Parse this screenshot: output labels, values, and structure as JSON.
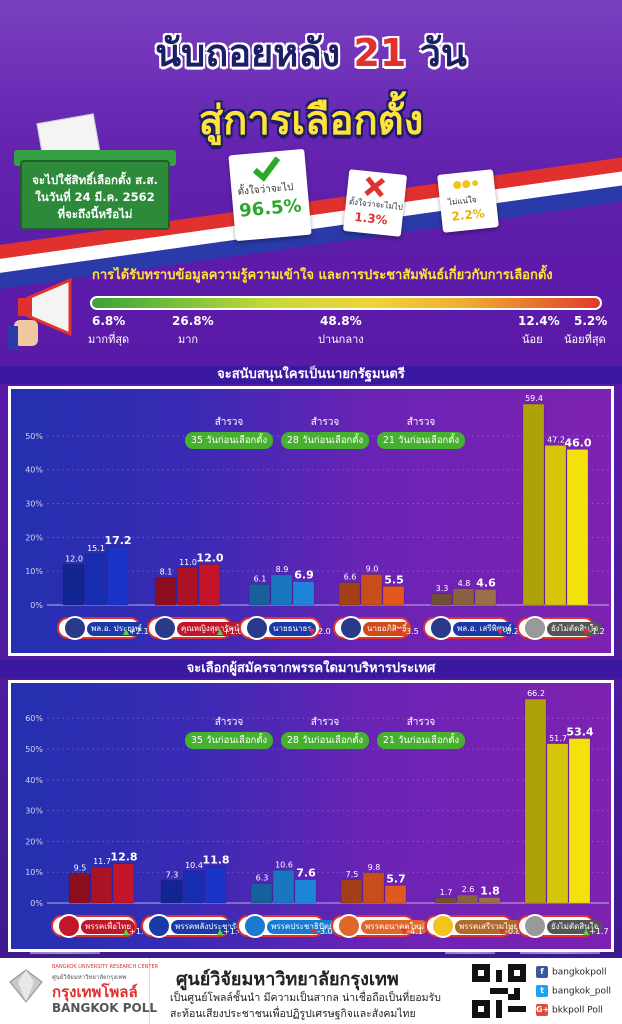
{
  "header": {
    "title_part1": "นับถอยหลัง",
    "title_number": "21",
    "title_part2": "วัน",
    "subtitle": "สู่การเลือกตั้ง",
    "ballot_question_line1": "จะไปใช้สิทธิ์เลือกตั้ง ส.ส.",
    "ballot_question_line2": "ในวันที่ 24 มี.ค. 2562",
    "ballot_question_line3": "ที่จะถึงนี้หรือไม่",
    "options": [
      {
        "label": "ตั้งใจว่าจะไป",
        "pct": "96.5%",
        "icon": "check-icon",
        "color": "#2aa82a"
      },
      {
        "label": "ตั้งใจว่าจะไม่ไป",
        "pct": "1.3%",
        "icon": "cross-icon",
        "color": "#e0312e"
      },
      {
        "label": "ไม่แน่ใจ",
        "pct": "2.2%",
        "icon": "unsure-icon",
        "color": "#e8b400"
      }
    ]
  },
  "knowledge": {
    "title": "การได้รับทราบข้อมูลความรู้ความเข้าใจ และการประชาสัมพันธ์เกี่ยวกับการเลือกตั้ง",
    "levels": [
      {
        "pct": "6.8%",
        "label": "มากที่สุด",
        "color": "#5ec04a"
      },
      {
        "pct": "26.8%",
        "label": "มาก",
        "color": "#9fd23a"
      },
      {
        "pct": "48.8%",
        "label": "ปานกลาง",
        "color": "#f1d33a"
      },
      {
        "pct": "12.4%",
        "label": "น้อย",
        "color": "#f0a032"
      },
      {
        "pct": "5.2%",
        "label": "น้อยที่สุด",
        "color": "#ee5a2a"
      }
    ]
  },
  "panel1": {
    "title": "จะสนับสนุนใครเป็นนายกรัฐมนตรี",
    "survey_word": "สำรวจ",
    "surveys": [
      "35 วันก่อนเลือกตั้ง",
      "28 วันก่อนเลือกตั้ง",
      "21 วันก่อนเลือกตั้ง"
    ],
    "candidates": [
      {
        "name": "พล.อ. ประยุทธ์",
        "change": "+2.1",
        "dir": "up",
        "chip": "#1a3aa8"
      },
      {
        "name": "คุณหญิงสุดารัตน์",
        "change": "+1.0",
        "dir": "up",
        "chip": "#c0182a"
      },
      {
        "name": "นายธนาธร",
        "change": "-2.0",
        "dir": "down",
        "chip": "#1a3aa8"
      },
      {
        "name": "นายอภิสิทธิ์",
        "change": "-3.5",
        "dir": "down",
        "chip": "#d04a1a"
      },
      {
        "name": "พล.อ. เสรีพิศุทธ์",
        "change": "-0.2",
        "dir": "down",
        "chip": "#1a3aa8"
      },
      {
        "name": "ยังไม่ตัดสินใจ",
        "change": "-1.2",
        "dir": "down",
        "chip": "#555"
      }
    ]
  },
  "panel2": {
    "title": "จะเลือกผู้สมัครจากพรรคใดมาบริหารประเทศ",
    "survey_word": "สำรวจ",
    "surveys": [
      "35 วันก่อนเลือกตั้ง",
      "28 วันก่อนเลือกตั้ง",
      "21 วันก่อนเลือกตั้ง"
    ],
    "parties": [
      {
        "name": "พรรคเพื่อไทย",
        "change": "+1.1",
        "dir": "up",
        "chip": "#c0182a"
      },
      {
        "name": "พรรคพลังประชารัฐ",
        "change": "+1.4",
        "dir": "up",
        "chip": "#1a3aa8"
      },
      {
        "name": "พรรคประชาธิปัตย์",
        "change": "-3.0",
        "dir": "down",
        "chip": "#1a7ad0"
      },
      {
        "name": "พรรคอนาคตใหม่",
        "change": "-4.1",
        "dir": "down",
        "chip": "#e0662a"
      },
      {
        "name": "พรรคเสรีรวมไทย",
        "change": "-0.8",
        "dir": "down",
        "chip": "#b06a2a"
      },
      {
        "name": "ยังไม่ตัดสินใจ",
        "change": "+1.7",
        "dir": "up",
        "chip": "#555"
      }
    ]
  },
  "chart_data": [
    {
      "type": "bar",
      "title": "จะสนับสนุนใครเป็นนายกรัฐมนตรี",
      "ylim": [
        0,
        55
      ],
      "yticks": [
        "0%",
        "10%",
        "20%",
        "30%",
        "40%",
        "50%"
      ],
      "categories": [
        "พล.อ. ประยุทธ์",
        "คุณหญิงสุดารัตน์",
        "นายธนาธร",
        "นายอภิสิทธิ์",
        "พล.อ. เสรีพิศุทธ์",
        "ยังไม่ตัดสินใจ"
      ],
      "series": [
        {
          "name": "35 วันก่อนเลือกตั้ง",
          "values": [
            12.0,
            8.1,
            6.1,
            6.6,
            3.3,
            59.4
          ]
        },
        {
          "name": "28 วันก่อนเลือกตั้ง",
          "values": [
            15.1,
            11.0,
            8.9,
            9.0,
            4.8,
            47.2
          ]
        },
        {
          "name": "21 วันก่อนเลือกตั้ง",
          "values": [
            17.2,
            12.0,
            6.9,
            5.5,
            4.6,
            46.0
          ]
        }
      ],
      "colors": [
        "#1a34c8",
        "#c3142a",
        "#1e86d8",
        "#e2571e",
        "#9a6f49",
        "#f3e10c"
      ]
    },
    {
      "type": "bar",
      "title": "จะเลือกผู้สมัครจากพรรคใดมาบริหารประเทศ",
      "ylim": [
        0,
        63
      ],
      "yticks": [
        "0%",
        "10%",
        "20%",
        "30%",
        "40%",
        "50%",
        "60%"
      ],
      "categories": [
        "พรรคเพื่อไทย",
        "พรรคพลังประชารัฐ",
        "พรรคประชาธิปัตย์",
        "พรรคอนาคตใหม่",
        "พรรคเสรีรวมไทย",
        "ยังไม่ตัดสินใจ"
      ],
      "series": [
        {
          "name": "35 วันก่อนเลือกตั้ง",
          "values": [
            9.5,
            7.3,
            6.3,
            7.5,
            1.7,
            66.2
          ]
        },
        {
          "name": "28 วันก่อนเลือกตั้ง",
          "values": [
            11.7,
            10.4,
            10.6,
            9.8,
            2.6,
            51.7
          ]
        },
        {
          "name": "21 วันก่อนเลือกตั้ง",
          "values": [
            12.8,
            11.8,
            7.6,
            5.7,
            1.8,
            53.4
          ]
        }
      ],
      "colors": [
        "#c3142a",
        "#1a34c8",
        "#1e86d8",
        "#e2571e",
        "#9a6f49",
        "#f3e10c"
      ]
    }
  ],
  "footer": {
    "logo_small1": "BANGKOK UNIVERSITY RESEARCH CENTER",
    "logo_small2": "ศูนย์วิจัยมหาวิทยาลัยกรุงเทพ",
    "logo_thai": "กรุงเทพโพลล์",
    "logo_en": "BANGKOK POLL",
    "center_name": "ศูนย์วิจัยมหาวิทยาลัยกรุงเทพ",
    "center_desc1": "เป็นศูนย์โพลล์ชั้นนำ มีความเป็นสากล น่าเชื่อถือเป็นที่ยอมรับ",
    "center_desc2": "สะท้อนเสียงประชาชนเพื่อปฏิรูปเศรษฐกิจและสังคมไทย",
    "social": [
      {
        "icon": "facebook-icon",
        "label": "bangkokpoll",
        "color": "#3b5998",
        "glyph": "f"
      },
      {
        "icon": "twitter-icon",
        "label": "bangkok_poll",
        "color": "#1da1f2",
        "glyph": "t"
      },
      {
        "icon": "google-plus-icon",
        "label": "bkkpoll Poll",
        "color": "#dd4b39",
        "glyph": "G+"
      }
    ]
  }
}
